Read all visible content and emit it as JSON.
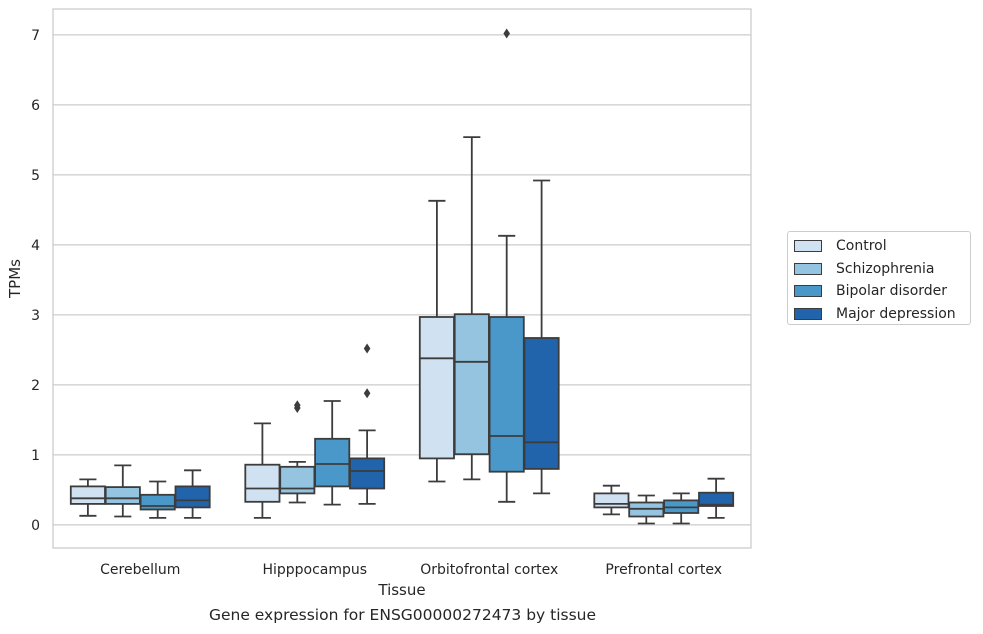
{
  "chart_data": {
    "type": "box",
    "xlabel": "Tissue",
    "ylabel": "TPMs",
    "caption": "Gene expression for ENSG00000272473 by tissue",
    "ylim": [
      -0.33,
      7.37
    ],
    "yticks": [
      0,
      1,
      2,
      3,
      4,
      5,
      6,
      7
    ],
    "grid": true,
    "legend_position": "right",
    "categories": [
      "Cerebellum",
      "Hipppocampus",
      "Orbitofrontal cortex",
      "Prefrontal cortex"
    ],
    "series": [
      {
        "name": "Control",
        "color": "#d0e1f2",
        "boxes": [
          {
            "whislo": 0.13,
            "q1": 0.3,
            "med": 0.38,
            "q3": 0.55,
            "whishi": 0.65,
            "fliers": []
          },
          {
            "whislo": 0.1,
            "q1": 0.33,
            "med": 0.52,
            "q3": 0.86,
            "whishi": 1.45,
            "fliers": []
          },
          {
            "whislo": 0.62,
            "q1": 0.95,
            "med": 2.38,
            "q3": 2.97,
            "whishi": 4.63,
            "fliers": []
          },
          {
            "whislo": 0.15,
            "q1": 0.25,
            "med": 0.3,
            "q3": 0.45,
            "whishi": 0.56,
            "fliers": []
          }
        ]
      },
      {
        "name": "Schizophrenia",
        "color": "#94c4df",
        "boxes": [
          {
            "whislo": 0.12,
            "q1": 0.3,
            "med": 0.38,
            "q3": 0.54,
            "whishi": 0.85,
            "fliers": []
          },
          {
            "whislo": 0.32,
            "q1": 0.45,
            "med": 0.52,
            "q3": 0.83,
            "whishi": 0.9,
            "fliers": [
              1.67,
              1.71
            ]
          },
          {
            "whislo": 0.65,
            "q1": 1.01,
            "med": 2.33,
            "q3": 3.01,
            "whishi": 5.54,
            "fliers": []
          },
          {
            "whislo": 0.02,
            "q1": 0.12,
            "med": 0.23,
            "q3": 0.32,
            "whishi": 0.42,
            "fliers": []
          }
        ]
      },
      {
        "name": "Bipolar disorder",
        "color": "#4a98c9",
        "boxes": [
          {
            "whislo": 0.1,
            "q1": 0.22,
            "med": 0.27,
            "q3": 0.43,
            "whishi": 0.62,
            "fliers": []
          },
          {
            "whislo": 0.29,
            "q1": 0.55,
            "med": 0.87,
            "q3": 1.23,
            "whishi": 1.77,
            "fliers": []
          },
          {
            "whislo": 0.33,
            "q1": 0.76,
            "med": 1.27,
            "q3": 2.97,
            "whishi": 4.13,
            "fliers": [
              7.02
            ]
          },
          {
            "whislo": 0.02,
            "q1": 0.17,
            "med": 0.25,
            "q3": 0.35,
            "whishi": 0.45,
            "fliers": []
          }
        ]
      },
      {
        "name": "Major depression",
        "color": "#2164ab",
        "boxes": [
          {
            "whislo": 0.1,
            "q1": 0.25,
            "med": 0.35,
            "q3": 0.55,
            "whishi": 0.78,
            "fliers": []
          },
          {
            "whislo": 0.3,
            "q1": 0.52,
            "med": 0.77,
            "q3": 0.95,
            "whishi": 1.35,
            "fliers": [
              1.88,
              2.52
            ]
          },
          {
            "whislo": 0.45,
            "q1": 0.8,
            "med": 1.18,
            "q3": 2.67,
            "whishi": 4.92,
            "fliers": []
          },
          {
            "whislo": 0.1,
            "q1": 0.27,
            "med": 0.29,
            "q3": 0.46,
            "whishi": 0.66,
            "fliers": []
          }
        ]
      }
    ]
  }
}
